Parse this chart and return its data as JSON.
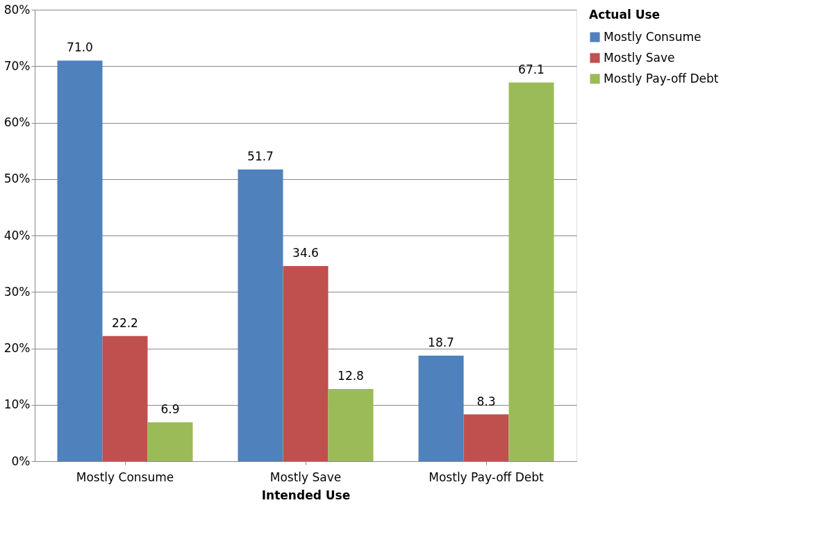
{
  "chart_data": {
    "type": "bar",
    "xlabel": "Intended Use",
    "legend_title": "Actual Use",
    "categories": [
      "Mostly Consume",
      "Mostly Save",
      "Mostly Pay-off Debt"
    ],
    "series": [
      {
        "name": "Mostly Consume",
        "color": "#4f81bd",
        "values": [
          71.0,
          51.7,
          18.7
        ],
        "value_labels": [
          "71.0",
          "51.7",
          "18.7"
        ]
      },
      {
        "name": "Mostly Save",
        "color": "#c0504d",
        "values": [
          22.2,
          34.6,
          8.3
        ],
        "value_labels": [
          "22.2",
          "34.6",
          "8.3"
        ]
      },
      {
        "name": "Mostly Pay-off Debt",
        "color": "#9bbb59",
        "values": [
          6.9,
          12.8,
          67.1
        ],
        "value_labels": [
          "6.9",
          "12.8",
          "67.1"
        ]
      }
    ],
    "ylim": [
      0,
      80
    ],
    "yticks": [
      {
        "value": 0,
        "label": "0%"
      },
      {
        "value": 10,
        "label": "10%"
      },
      {
        "value": 20,
        "label": "20%"
      },
      {
        "value": 30,
        "label": "30%"
      },
      {
        "value": 40,
        "label": "40%"
      },
      {
        "value": 50,
        "label": "50%"
      },
      {
        "value": 60,
        "label": "60%"
      },
      {
        "value": 70,
        "label": "70%"
      },
      {
        "value": 80,
        "label": "80%"
      }
    ],
    "grid": "y",
    "legend": "right"
  }
}
